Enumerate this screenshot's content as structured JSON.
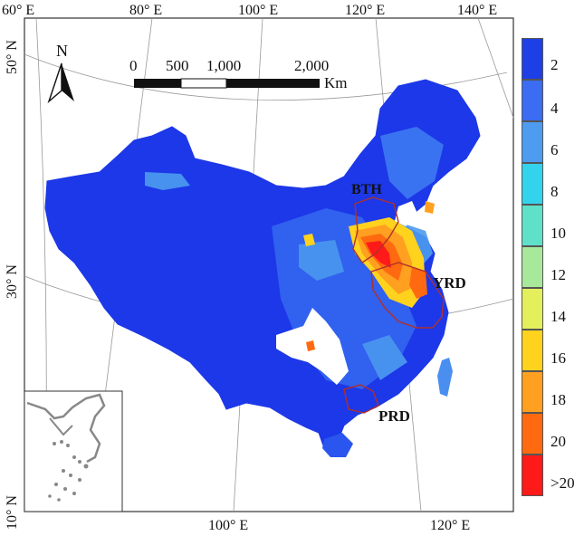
{
  "map": {
    "lon_labels_top": [
      "60° E",
      "80° E",
      "100° E",
      "120° E",
      "140° E"
    ],
    "lon_labels_bottom": [
      "100° E",
      "120° E"
    ],
    "lat_labels": [
      "50° N",
      "30° N",
      "10° N"
    ],
    "north_label": "N",
    "scale_bar": {
      "ticks": [
        "0",
        "500",
        "1,000",
        "2,000"
      ],
      "unit": "Km"
    },
    "regions": [
      {
        "name": "BTH",
        "outline_color": "#b0302a"
      },
      {
        "name": "YRD",
        "outline_color": "#b0302a"
      },
      {
        "name": "PRD",
        "outline_color": "#b0302a"
      }
    ]
  },
  "legend": {
    "items": [
      {
        "label": "2",
        "color": "#1f3fe6"
      },
      {
        "label": "4",
        "color": "#3b6cf2"
      },
      {
        "label": "6",
        "color": "#4d9cf0"
      },
      {
        "label": "8",
        "color": "#33d3ee"
      },
      {
        "label": "10",
        "color": "#5fe0c8"
      },
      {
        "label": "12",
        "color": "#a7e89a"
      },
      {
        "label": "14",
        "color": "#e4ef5c"
      },
      {
        "label": "16",
        "color": "#ffd21e"
      },
      {
        "label": "18",
        "color": "#ffa020"
      },
      {
        "label": "20",
        "color": "#ff6a10"
      },
      {
        "label": ">20",
        "color": "#ff1a1a"
      }
    ]
  }
}
